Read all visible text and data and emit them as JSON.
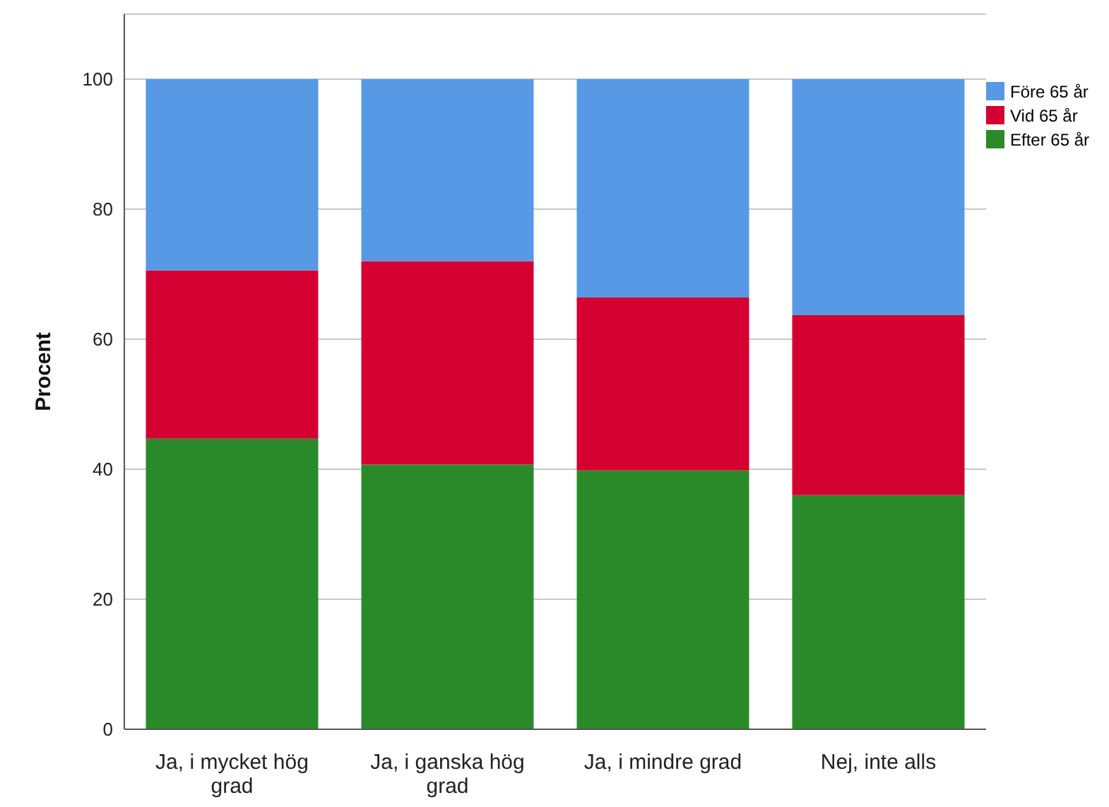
{
  "chart_data": {
    "type": "bar",
    "stacked": true,
    "ylabel": "Procent",
    "categories": [
      "Ja, i mycket hög grad",
      "Ja, i ganska hög grad",
      "Ja, i mindre grad",
      "Nej, inte alls"
    ],
    "series": [
      {
        "name": "Efter 65 år",
        "color": "#2a8a2a",
        "values": [
          44.7,
          40.7,
          39.8,
          36.0
        ]
      },
      {
        "name": "Vid 65 år",
        "color": "#d50032",
        "values": [
          25.9,
          31.3,
          26.6,
          27.7
        ]
      },
      {
        "name": "Före 65 år",
        "color": "#5899e6",
        "values": [
          29.4,
          28.0,
          33.6,
          36.3
        ]
      }
    ],
    "ylim": [
      0,
      110
    ],
    "yticks": [
      0,
      20,
      40,
      60,
      80,
      100
    ],
    "grid": "y",
    "legend": "top right"
  }
}
